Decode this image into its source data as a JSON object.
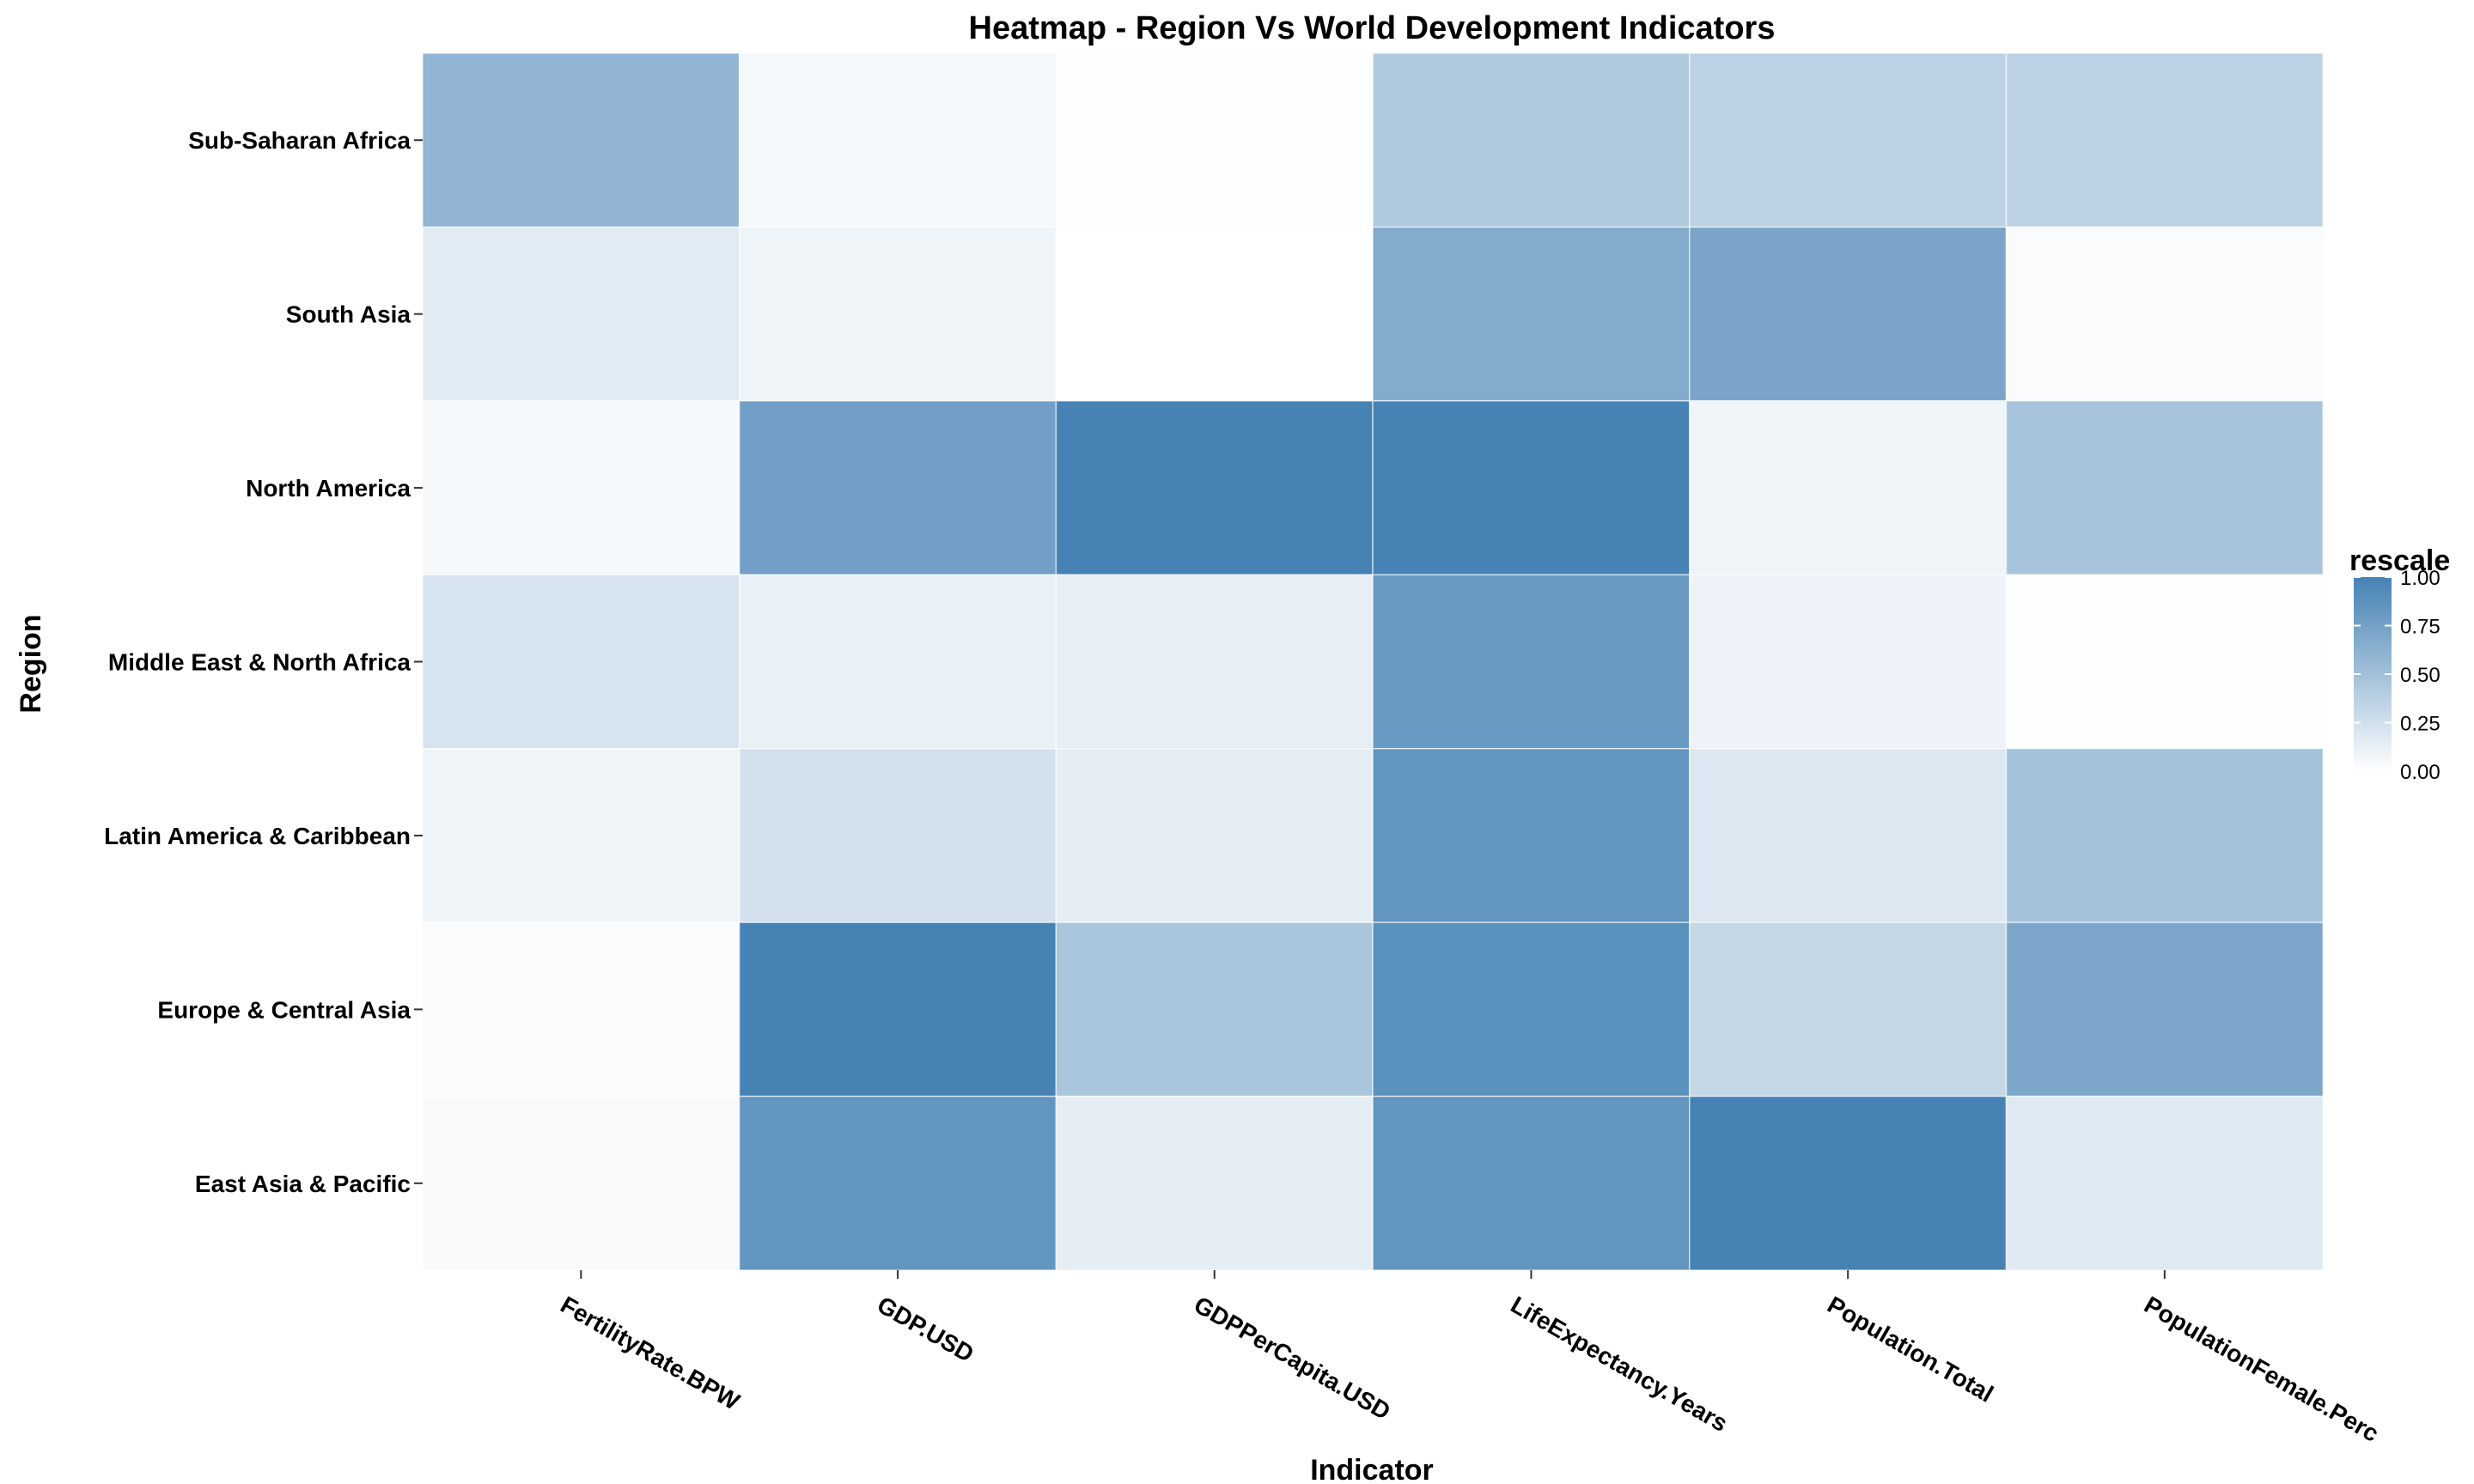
{
  "chart_data": {
    "type": "heatmap",
    "title": "Heatmap - Region Vs World Development Indicators",
    "xlabel": "Indicator",
    "ylabel": "Region",
    "x": [
      "FertilityRate.BPW",
      "GDP.USD",
      "GDPPerCapita.USD",
      "LifeExpectancy.Years",
      "Population.Total",
      "PopulationFemale.Perc"
    ],
    "y": [
      "Sub-Saharan Africa",
      "South Asia",
      "North America",
      "Middle East & North Africa",
      "Latin America & Caribbean",
      "Europe & Central Asia",
      "East Asia & Pacific"
    ],
    "values": [
      [
        0.6,
        0.06,
        0.01,
        0.43,
        0.36,
        0.36
      ],
      [
        0.16,
        0.09,
        0.0,
        0.67,
        0.72,
        0.03
      ],
      [
        0.05,
        0.77,
        1.0,
        1.0,
        0.09,
        0.47
      ],
      [
        0.22,
        0.12,
        0.13,
        0.81,
        0.1,
        0.01
      ],
      [
        0.09,
        0.24,
        0.14,
        0.85,
        0.19,
        0.5
      ],
      [
        0.03,
        1.0,
        0.46,
        0.89,
        0.32,
        0.71
      ],
      [
        0.04,
        0.85,
        0.14,
        0.85,
        1.0,
        0.18
      ]
    ],
    "legend": {
      "title": "rescale",
      "ticks": [
        "0.00",
        "0.25",
        "0.50",
        "0.75",
        "1.00"
      ],
      "placement": "right",
      "low_color": "#ffffff",
      "high_color": "#4682b4"
    },
    "grid": false
  }
}
